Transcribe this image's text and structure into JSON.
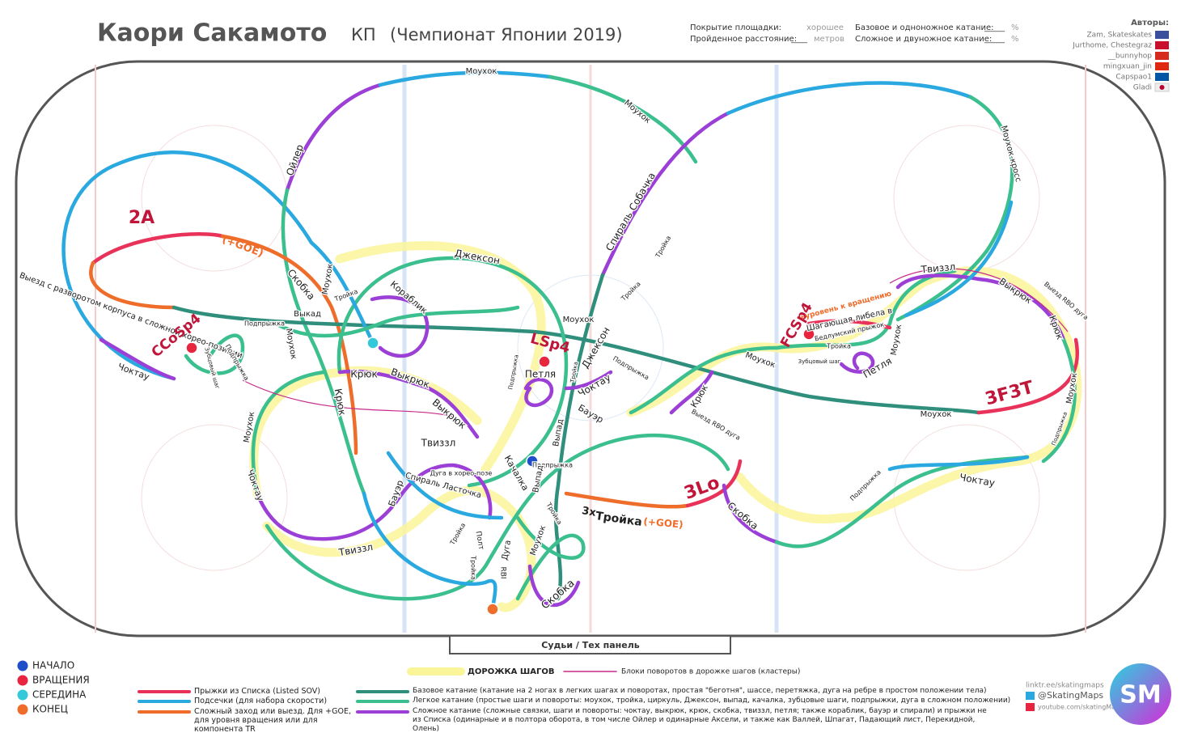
{
  "header": {
    "skater": "Каори Сакамото",
    "program": "КП",
    "event": "(Чемпионат Японии 2019)"
  },
  "stats": {
    "coverage_label": "Покрытие площадки:",
    "coverage_value": "хорошее",
    "distance_label": "Пройденное расстояние:",
    "distance_blank": "____",
    "distance_unit": "метров",
    "basic_label": "Базовое и одноножное катание:",
    "basic_blank": "_____",
    "basic_unit": "%",
    "complex_label": "Сложное и двуножное катание:",
    "complex_blank": "_____",
    "complex_unit": "%"
  },
  "authors": {
    "title": "Авторы:",
    "names": [
      "Zam, Skateskates",
      "Jurthome, Chestegraz",
      "__bunnyhop",
      "mingxuan_jin",
      "Capspao1",
      "Gladi"
    ]
  },
  "rink": {
    "judges": "Судьи / Тех панель"
  },
  "elements": [
    "2A",
    "(+GOE)",
    "CCoSp4",
    "LSp4",
    "FCSp4",
    "3F3T",
    "3Lo",
    "3x",
    "Тройка",
    "(+GOE)",
    "+уровень к вращению"
  ],
  "moves": [
    "Моухок",
    "Моухок",
    "Моухок-кросс",
    "Ойлер",
    "Спираль Собачка",
    "Тройка",
    "Тройка",
    "Скобка",
    "Моухок",
    "Тройка",
    "Выкад",
    "Подпрыжка",
    "Моухок",
    "Выезд с разворотом корпуса в сложной хорео-позиции",
    "Чоктау",
    "Зубцовый шаг",
    "Подпрыжка",
    "Джексон",
    "Кораблик",
    "Моухок",
    "Джексон",
    "Подпрыжка",
    "Крюк",
    "Выкрюк",
    "Крюк",
    "Выкрюк",
    "Петля",
    "Чоктау",
    "Подпрыжка",
    "Тройка",
    "Бауэр",
    "Выпад",
    "Моухок",
    "Чоктау",
    "Твиззл",
    "Дуга в хорео-позе",
    "Спираль Ласточка",
    "Качалка",
    "Бауэр",
    "Подпрыжка",
    "Выпад",
    "Тройка",
    "Твиззл",
    "Тройка",
    "Полт",
    "Дуга",
    "RBI",
    "Тройка",
    "Моухок",
    "Скобка",
    "Крюк",
    "Выезд RBO дуга",
    "Моухок",
    "Зубцовый шаг",
    "Шагающая либела в",
    "Бедлумский прыжок",
    "Тройка",
    "Петля",
    "Моухок",
    "Твиззл",
    "Выкрюк",
    "Выезд RBO дуга",
    "Крюк",
    "Моухок",
    "Подпрыжка",
    "Моухок",
    "Чоктау",
    "Подпрыжка",
    "Скобка"
  ],
  "legend": {
    "markers": [
      "НАЧАЛО",
      "ВРАЩЕНИЯ",
      "СЕРЕДИНА",
      "КОНЕЦ"
    ],
    "steps": "ДОРОЖКА ШАГОВ",
    "clusters": "Блоки поворотов в дорожке шагов (кластеры)",
    "lines": [
      "Прыжки из Списка (Listed SOV)",
      "Подсечки (для набора скорости)",
      "Сложный заход или выезд. Для +GOE, для уровня вращения или для компонента TR",
      "Базовое катание (катание на 2 ногах в легких шагах и поворотах, простая \"беготня\", шассе, перетяжка, дуга на ребре в простом положении тела)",
      "Легкое катание (простые шаги и повороты: моухок, тройка, циркуль, Джексон, выпад, качалка, зубцовые шаги, подпрыжки, дуга в сложном положении)",
      "Сложное катание (сложные связки, шаги и повороты: чоктау, выкрюк, крюк, скобка, твиззл, петля; также кораблик, бауэр и спирали) и прыжки не из Списка (одинарные и в полтора оборота, в том числе Ойлер и одинарные Аксели, и также как Валлей, Шпагат, Падающий лист, Перекидной, Олень)"
    ]
  },
  "footer": {
    "links": [
      "linktr.ee/skatingmaps",
      "@SkatingMaps",
      "youtube.com/skatingMaps"
    ],
    "logo": "SM"
  }
}
